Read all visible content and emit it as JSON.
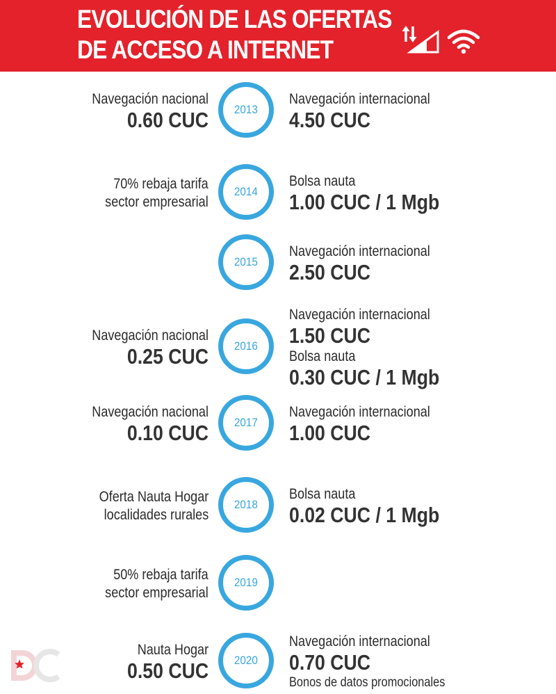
{
  "header": {
    "title_line1": "EVOLUCIÓN DE LAS OFERTAS",
    "title_line2": "DE ACCESO A INTERNET",
    "icons": [
      "data-transfer-arrows-icon",
      "signal-strength-icon",
      "wifi-icon"
    ],
    "background_color": "#e3222b"
  },
  "accent_color": "#39a7df",
  "timeline": [
    {
      "year": "2013",
      "left": [
        {
          "text": "Navegación nacional",
          "kind": "label"
        },
        {
          "text": "0.60 CUC",
          "kind": "value"
        }
      ],
      "right": [
        {
          "text": "Navegación internacional",
          "kind": "label"
        },
        {
          "text": "4.50 CUC",
          "kind": "value"
        }
      ]
    },
    {
      "year": "2014",
      "left": [
        {
          "text": "70% rebaja tarifa",
          "kind": "label"
        },
        {
          "text": "sector empresarial",
          "kind": "label"
        }
      ],
      "right": [
        {
          "text": "Bolsa nauta",
          "kind": "label"
        },
        {
          "text": "1.00 CUC / 1 Mgb",
          "kind": "value"
        }
      ]
    },
    {
      "year": "2015",
      "left": [],
      "right": [
        {
          "text": "Navegación internacional",
          "kind": "label"
        },
        {
          "text": "2.50 CUC",
          "kind": "value"
        }
      ]
    },
    {
      "year": "2016",
      "left": [
        {
          "text": "Navegación nacional",
          "kind": "label"
        },
        {
          "text": "0.25 CUC",
          "kind": "value"
        }
      ],
      "right": [
        {
          "text": "Navegación internacional",
          "kind": "label"
        },
        {
          "text": "1.50 CUC",
          "kind": "value"
        },
        {
          "text": "Bolsa nauta",
          "kind": "label"
        },
        {
          "text": "0.30 CUC / 1 Mgb",
          "kind": "value"
        }
      ]
    },
    {
      "year": "2017",
      "left": [
        {
          "text": "Navegación nacional",
          "kind": "label"
        },
        {
          "text": "0.10 CUC",
          "kind": "value"
        }
      ],
      "right": [
        {
          "text": "Navegación internacional",
          "kind": "label"
        },
        {
          "text": "1.00 CUC",
          "kind": "value"
        }
      ]
    },
    {
      "year": "2018",
      "left": [
        {
          "text": "Oferta Nauta Hogar",
          "kind": "label"
        },
        {
          "text": "localidades rurales",
          "kind": "label"
        }
      ],
      "right": [
        {
          "text": "Bolsa nauta",
          "kind": "label"
        },
        {
          "text": "0.02 CUC / 1 Mgb",
          "kind": "value"
        }
      ]
    },
    {
      "year": "2019",
      "left": [
        {
          "text": "50% rebaja tarifa",
          "kind": "label"
        },
        {
          "text": "sector empresarial",
          "kind": "label"
        }
      ],
      "right": []
    },
    {
      "year": "2020",
      "left": [
        {
          "text": "Nauta Hogar",
          "kind": "label"
        },
        {
          "text": "0.50 CUC",
          "kind": "value"
        }
      ],
      "right": [
        {
          "text": "Navegación internacional",
          "kind": "label"
        },
        {
          "text": "0.70 CUC",
          "kind": "value"
        },
        {
          "text": "Bonos de datos promocionales",
          "kind": "small"
        }
      ]
    }
  ],
  "logo": {
    "icon": "dc-logo-icon"
  }
}
